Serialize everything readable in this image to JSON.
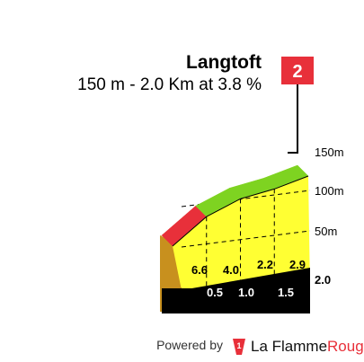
{
  "chart_data": {
    "type": "area",
    "title": "Langtoft",
    "subtitle": "150 m - 2.0 Km at 3.8 %",
    "flag_label": "2",
    "ylim": [
      0,
      150
    ],
    "y_ticks": [
      {
        "value": 150,
        "label": "150m"
      },
      {
        "value": 100,
        "label": "100m"
      },
      {
        "value": 50,
        "label": "50m"
      }
    ],
    "xlim": [
      0,
      2.0
    ],
    "distance_end_label": "2.0",
    "km_markers": [
      {
        "x": 0.5,
        "label": "0.5"
      },
      {
        "x": 1.0,
        "label": "1.0"
      },
      {
        "x": 1.5,
        "label": "1.5"
      }
    ],
    "segments": [
      {
        "start": 0.0,
        "end": 0.5,
        "gradient": 6.6,
        "label": "6.6",
        "color": "#e8303a"
      },
      {
        "start": 0.5,
        "end": 1.0,
        "gradient": 4.0,
        "label": "4.0",
        "color": "#7ed321"
      },
      {
        "start": 1.0,
        "end": 1.5,
        "gradient": 2.2,
        "label": "2.2",
        "color": "#7ed321"
      },
      {
        "start": 1.5,
        "end": 2.0,
        "gradient": 2.9,
        "label": "2.9",
        "color": "#7ed321"
      }
    ],
    "colors": {
      "body": "#ffff33",
      "side": "#c8901e",
      "base": "#000000",
      "flag": "#e8303a"
    }
  },
  "footer": {
    "powered_by": "Powered by",
    "brand_prefix": "La Flamme",
    "brand_suffix": "Rouge",
    "brand_color": "#e8303a"
  }
}
